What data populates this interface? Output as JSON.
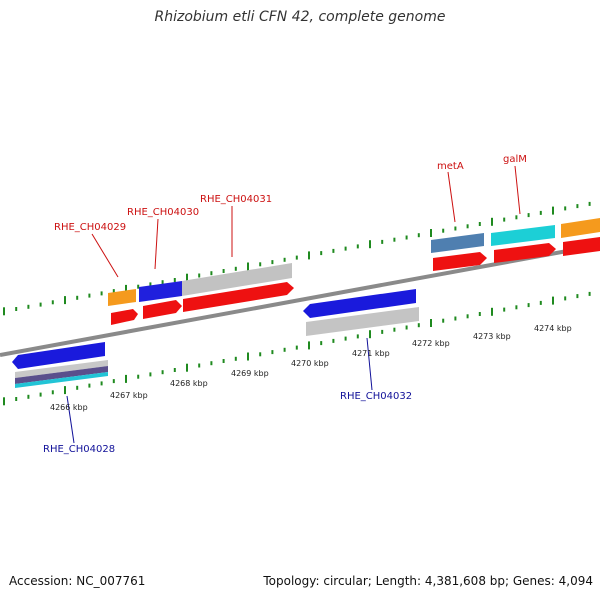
{
  "title": "Rhizobium etli CFN 42, complete genome",
  "footer": {
    "accession": "Accession: NC_007761",
    "summary": "Topology: circular; Length: 4,381,608 bp; Genes: 4,094"
  },
  "colors": {
    "forward_label": "#cc1111",
    "reverse_label": "#111199",
    "tick": "#1f8a1f",
    "backbone": "#888888"
  },
  "kbp_labels": [
    "4266 kbp",
    "4267 kbp",
    "4268 kbp",
    "4269 kbp",
    "4270 kbp",
    "4271 kbp",
    "4272 kbp",
    "4273 kbp",
    "4274 kbp"
  ],
  "gene_labels": {
    "forward": [
      "RHE_CH04029",
      "RHE_CH04030",
      "RHE_CH04031",
      "metA",
      "galM"
    ],
    "reverse": [
      "RHE_CH04028",
      "RHE_CH04032"
    ]
  }
}
